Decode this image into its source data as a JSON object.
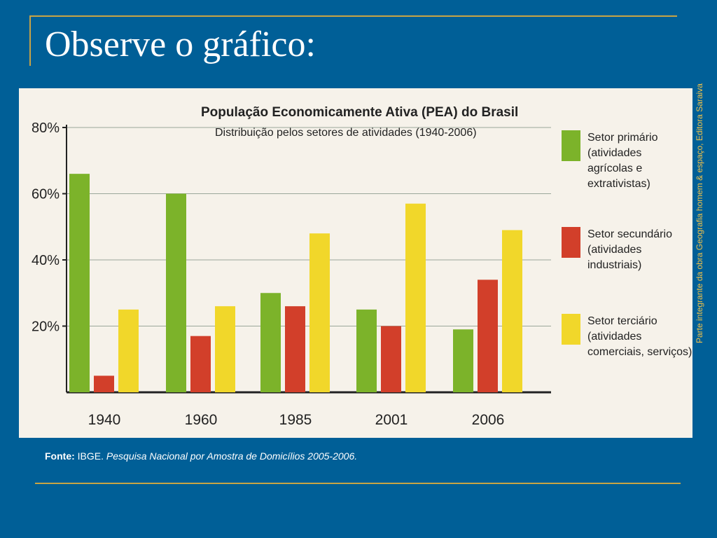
{
  "slide": {
    "title": "Observe o gráfico:",
    "side_credit": "Parte integrante da obra Geografia homem & espaço, Editora Saraiva",
    "source_label": "Fonte:",
    "source_org": "IBGE.",
    "source_title": "Pesquisa Nacional por Amostra de Domicílios 2005-2006.",
    "colors": {
      "background": "#005f97",
      "accent_line": "#c8a445",
      "credit": "#f0c14a"
    }
  },
  "chart_data": {
    "type": "bar",
    "title": "População Economicamente Ativa (PEA) do Brasil",
    "subtitle": "Distribuição pelos setores de atividades (1940-2006)",
    "categories": [
      "1940",
      "1960",
      "1985",
      "2001",
      "2006"
    ],
    "y_tick_labels": [
      "80%",
      "60%",
      "40%",
      "20%"
    ],
    "y_ticks": [
      80,
      60,
      40,
      20
    ],
    "ylim": [
      0,
      80
    ],
    "grid": true,
    "legend_position": "right",
    "series": [
      {
        "name": "Setor primário",
        "legend_lines": [
          "Setor primário",
          "(atividades",
          "agrícolas e",
          "extrativistas)"
        ],
        "color": "#7cb32a",
        "values": [
          66,
          60,
          30,
          25,
          19
        ]
      },
      {
        "name": "Setor secundário",
        "legend_lines": [
          "Setor secundário",
          "(atividades",
          "industriais)"
        ],
        "color": "#d23f2a",
        "values": [
          5,
          17,
          26,
          20,
          34
        ]
      },
      {
        "name": "Setor terciário",
        "legend_lines": [
          "Setor terciário",
          "(atividades",
          "comerciais, serviços)"
        ],
        "color": "#f1d72a",
        "values": [
          25,
          26,
          48,
          57,
          49
        ]
      }
    ]
  }
}
